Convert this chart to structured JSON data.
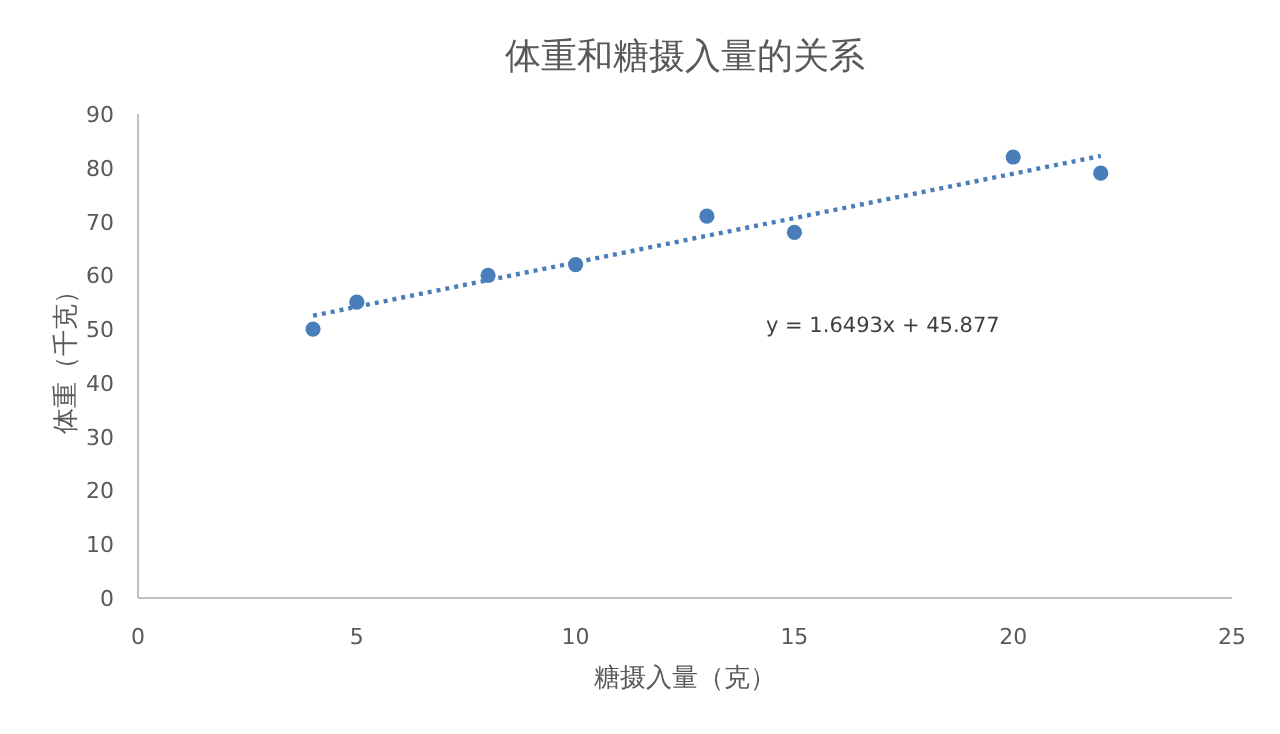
{
  "chart_data": {
    "type": "scatter",
    "title": "体重和糖摄入量的关系",
    "xlabel": "糖摄入量（克）",
    "ylabel": "体重（千克）",
    "xlim": [
      0,
      25
    ],
    "xticks": [
      0,
      5,
      10,
      15,
      20,
      25
    ],
    "ylim": [
      0,
      90
    ],
    "yticks": [
      0,
      10,
      20,
      30,
      40,
      50,
      60,
      70,
      80,
      90
    ],
    "grid": false,
    "series": [
      {
        "color": "#4a7ebb",
        "marker": "circle",
        "x": [
          4,
          5,
          8,
          10,
          13,
          15,
          20,
          22
        ],
        "values": [
          50,
          55,
          60,
          62,
          71,
          68,
          82,
          79
        ]
      },
      {
        "type": "line",
        "color": "#4a7ebb",
        "marker": "none",
        "line_style": "dotted",
        "x": [
          4,
          22
        ],
        "values": [
          52.5,
          82.2
        ]
      }
    ],
    "annotations": [
      "y = 1.6493x + 45.877"
    ]
  }
}
